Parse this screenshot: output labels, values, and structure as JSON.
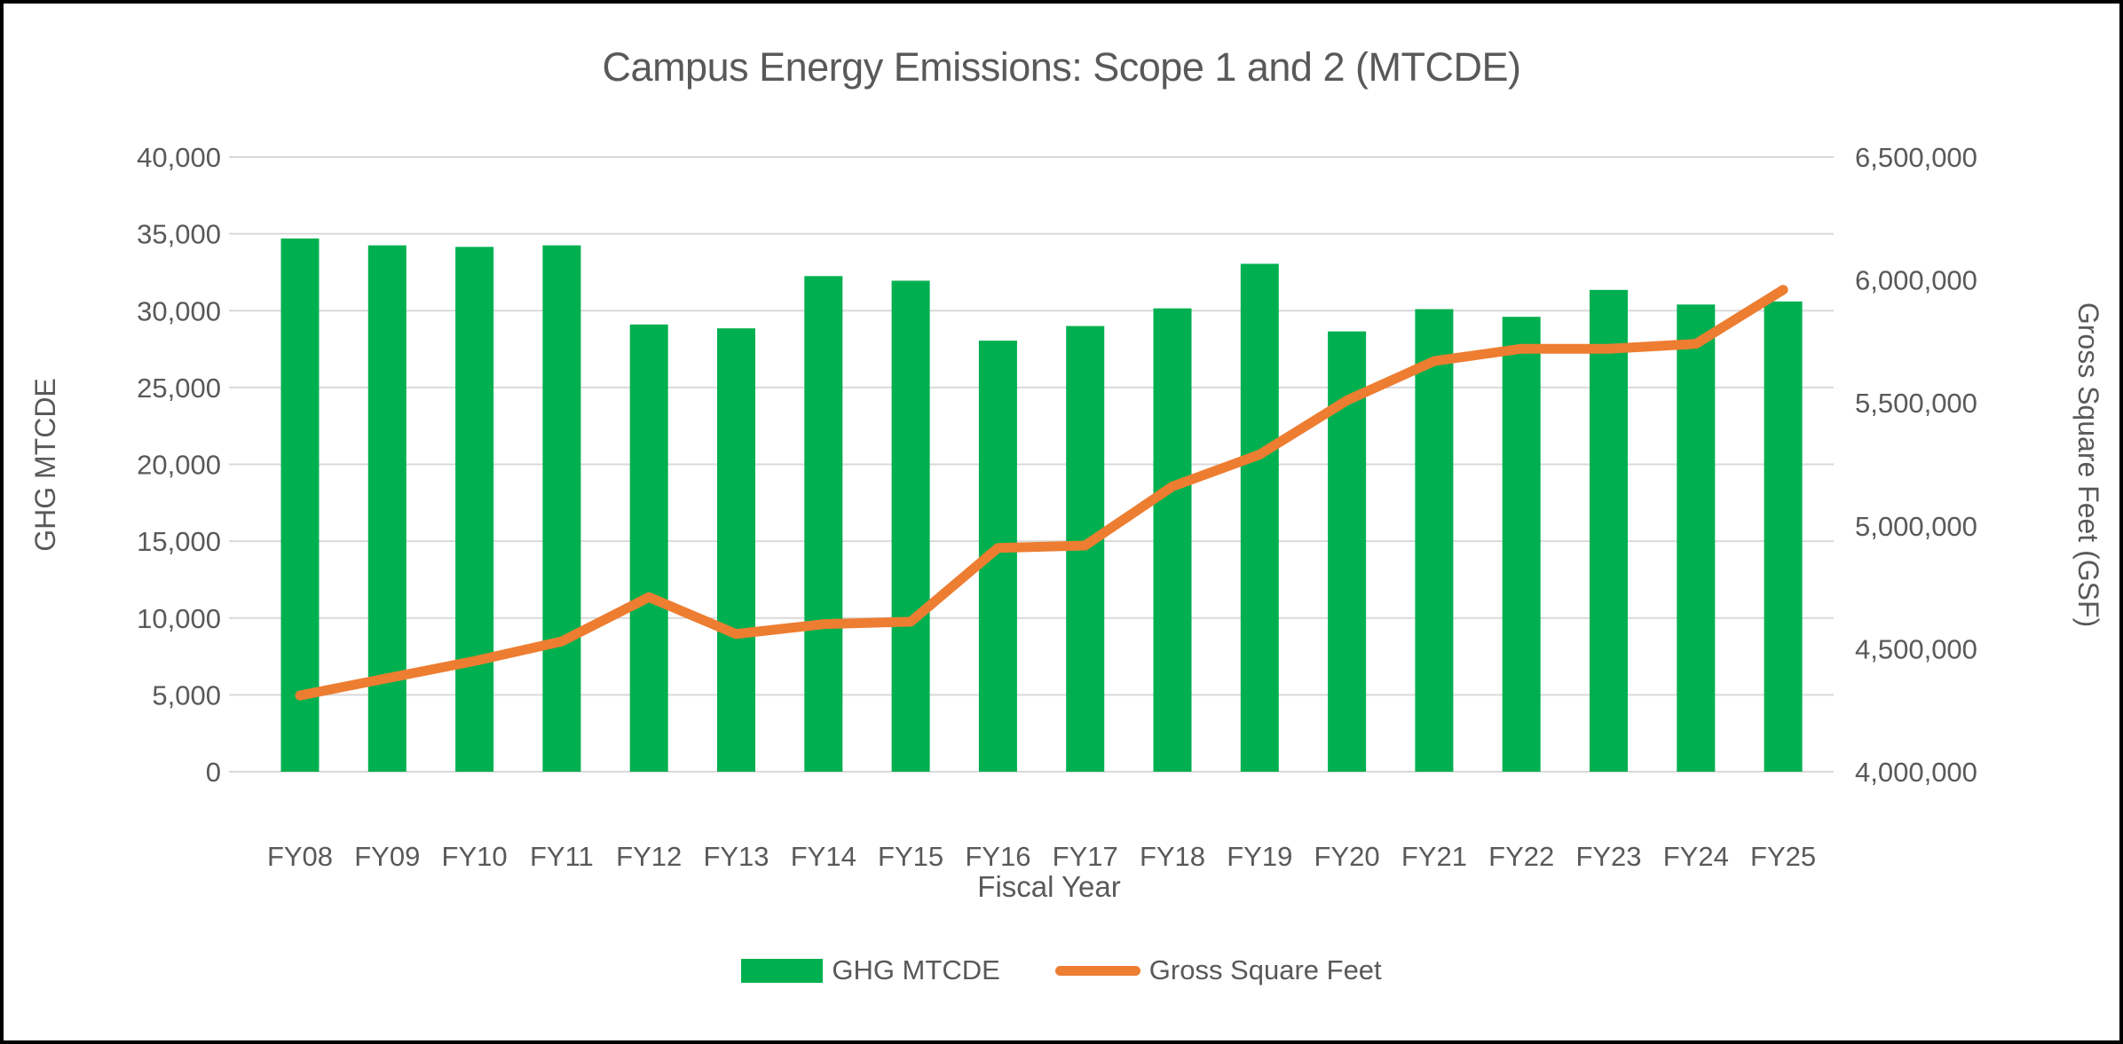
{
  "title": "Campus Energy Emissions: Scope 1 and 2 (MTCDE)",
  "colors": {
    "bar": "#00B050",
    "line": "#ED7D31",
    "grid": "#D9D9D9",
    "text": "#595959",
    "border": "#000000",
    "background": "#FFFFFF"
  },
  "chart_data": {
    "type": "bar",
    "subtype": "combo-bar-line-dual-axis",
    "title": "Campus Energy Emissions: Scope 1 and 2 (MTCDE)",
    "xlabel": "Fiscal Year",
    "ylabel_left": "GHG MTCDE",
    "ylabel_right": "Gross Square Feet (GSF)",
    "grid": true,
    "legend_position": "bottom",
    "categories": [
      "FY08",
      "FY09",
      "FY10",
      "FY11",
      "FY12",
      "FY13",
      "FY14",
      "FY15",
      "FY16",
      "FY17",
      "FY18",
      "FY19",
      "FY20",
      "FY21",
      "FY22",
      "FY23",
      "FY24",
      "FY25"
    ],
    "series": [
      {
        "name": "GHG MTCDE",
        "type": "bar",
        "axis": "left",
        "color": "#00B050",
        "values": [
          34700,
          34250,
          34150,
          34250,
          29100,
          28850,
          32250,
          31950,
          28050,
          29000,
          30150,
          33050,
          28650,
          30100,
          29600,
          31350,
          30400,
          30600
        ]
      },
      {
        "name": "Gross Square Feet",
        "type": "line",
        "axis": "right",
        "color": "#ED7D31",
        "values": [
          4310000,
          4380000,
          4450000,
          4530000,
          4710000,
          4560000,
          4600000,
          4610000,
          4910000,
          4920000,
          5160000,
          5290000,
          5510000,
          5670000,
          5720000,
          5720000,
          5740000,
          5960000
        ]
      }
    ],
    "axis_left": {
      "min": 0,
      "max": 40000,
      "tick_step": 5000,
      "tick_labels": [
        "0",
        "5,000",
        "10,000",
        "15,000",
        "20,000",
        "25,000",
        "30,000",
        "35,000",
        "40,000"
      ]
    },
    "axis_right": {
      "min": 4000000,
      "max": 6500000,
      "tick_step": 500000,
      "tick_labels": [
        "4,000,000",
        "4,500,000",
        "5,000,000",
        "5,500,000",
        "6,000,000",
        "6,500,000"
      ]
    }
  },
  "legend": {
    "bar_label": "GHG MTCDE",
    "line_label": "Gross Square Feet"
  }
}
